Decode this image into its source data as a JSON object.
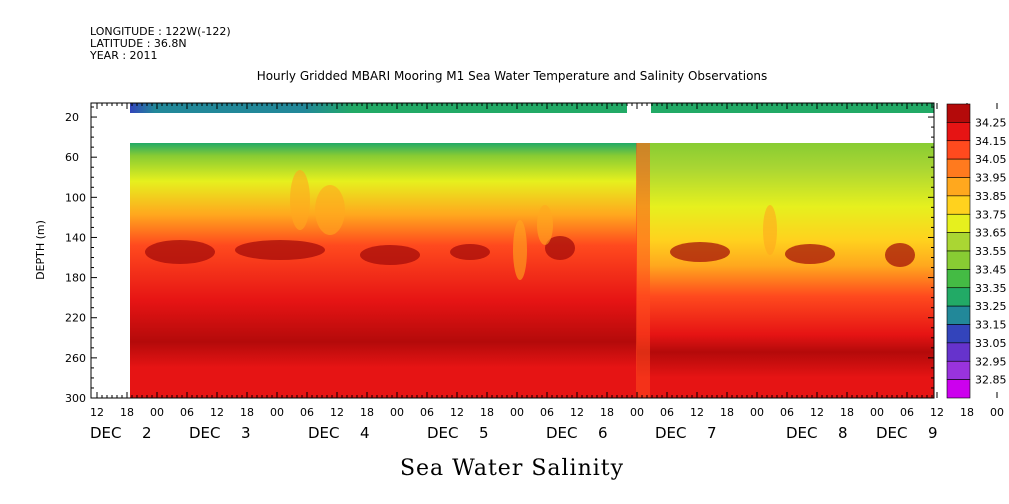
{
  "header": {
    "longitude": "LONGITUDE : 122W(-122)",
    "latitude": "LATITUDE : 36.8N",
    "year": "YEAR : 2011"
  },
  "chart_data": {
    "type": "heatmap",
    "title": "Hourly Gridded MBARI Mooring M1 Sea Water Temperature and Salinity Observations",
    "bottom_title": "Sea Water Salinity",
    "ylabel": "DEPTH (m)",
    "ylim": [
      300,
      6
    ],
    "y_inverted": true,
    "y_ticks": [
      20,
      60,
      100,
      140,
      180,
      220,
      260,
      300
    ],
    "x_hour_ticks": [
      "12",
      "18",
      "00",
      "06",
      "12",
      "18",
      "00",
      "06",
      "12",
      "18",
      "00",
      "06",
      "12",
      "18",
      "00",
      "06",
      "12",
      "18",
      "00",
      "06",
      "12",
      "18",
      "00",
      "06",
      "12",
      "18",
      "00",
      "06",
      "12",
      "18",
      "00",
      "06"
    ],
    "x_day_labels": [
      "DEC 2",
      "DEC 3",
      "DEC 4",
      "DEC 5",
      "DEC 6",
      "DEC 7",
      "DEC 8",
      "DEC 9"
    ],
    "colorbar": {
      "levels": [
        32.85,
        32.95,
        33.05,
        33.15,
        33.25,
        33.35,
        33.45,
        33.55,
        33.65,
        33.75,
        33.85,
        33.95,
        34.05,
        34.15,
        34.25
      ],
      "colors": [
        "#cc00ee",
        "#9933dd",
        "#6633cc",
        "#3344bb",
        "#228899",
        "#22aa66",
        "#44bb44",
        "#88cc33",
        "#aad633",
        "#e6f01e",
        "#ffd21e",
        "#ffa81e",
        "#ff7a1e",
        "#ff4a1e",
        "#e61414",
        "#b40a0a"
      ]
    },
    "profiles": [
      {
        "depth": 10,
        "value": 33.2
      },
      {
        "depth": 40,
        "value": 33.45
      },
      {
        "depth": 80,
        "value": 33.78
      },
      {
        "depth": 120,
        "value": 33.98
      },
      {
        "depth": 160,
        "value": 34.12
      },
      {
        "depth": 200,
        "value": 34.18
      },
      {
        "depth": 240,
        "value": 34.24
      },
      {
        "depth": 260,
        "value": 34.28
      },
      {
        "depth": 300,
        "value": 34.22
      }
    ],
    "gaps": [
      "depth 14–38 m not observed",
      "no data Dec 7 00–03"
    ]
  }
}
